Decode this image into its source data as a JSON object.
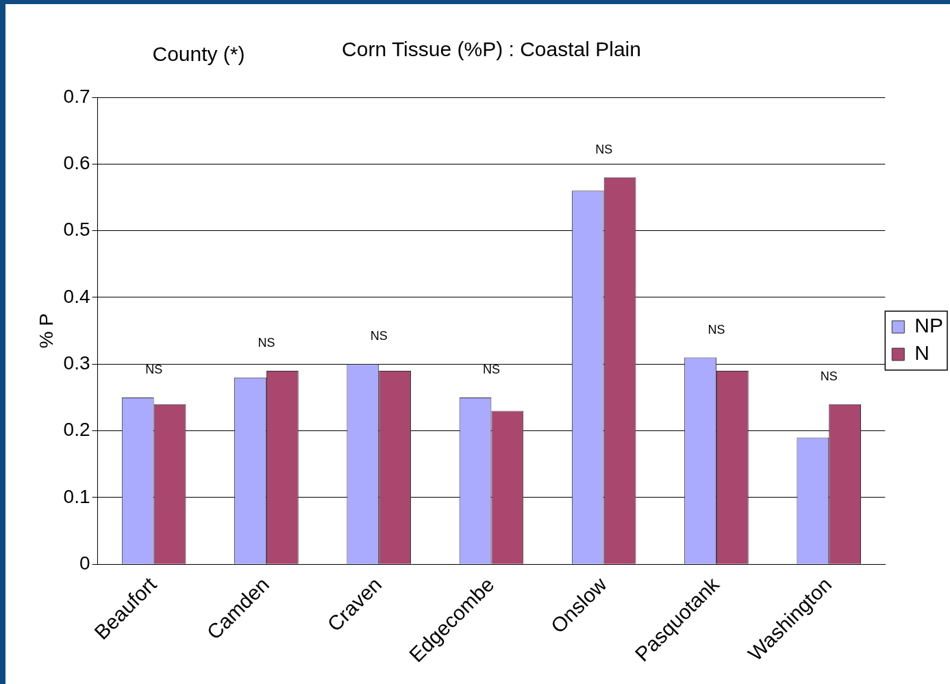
{
  "chart_data": {
    "type": "bar",
    "title": "Corn Tissue (%P) : Coastal Plain",
    "ylabel": "% P",
    "categories": [
      "Beaufort",
      "Camden",
      "Craven",
      "Edgecombe",
      "Onslow",
      "Pasquotank",
      "Washington"
    ],
    "series": [
      {
        "name": "NP",
        "color": "#aaaaff",
        "values": [
          0.25,
          0.28,
          0.3,
          0.25,
          0.56,
          0.31,
          0.19
        ]
      },
      {
        "name": "N",
        "color": "#a9476f",
        "values": [
          0.24,
          0.29,
          0.29,
          0.23,
          0.58,
          0.29,
          0.24
        ]
      }
    ],
    "ylim": [
      0,
      0.7
    ],
    "yticks": [
      0,
      0.1,
      0.2,
      0.3,
      0.4,
      0.5,
      0.6,
      0.7
    ],
    "grid": "y",
    "legend": "right",
    "annotations": [
      "County (*)",
      "NS",
      "NS",
      "NS",
      "NS",
      "NS",
      "NS",
      "NS"
    ]
  }
}
